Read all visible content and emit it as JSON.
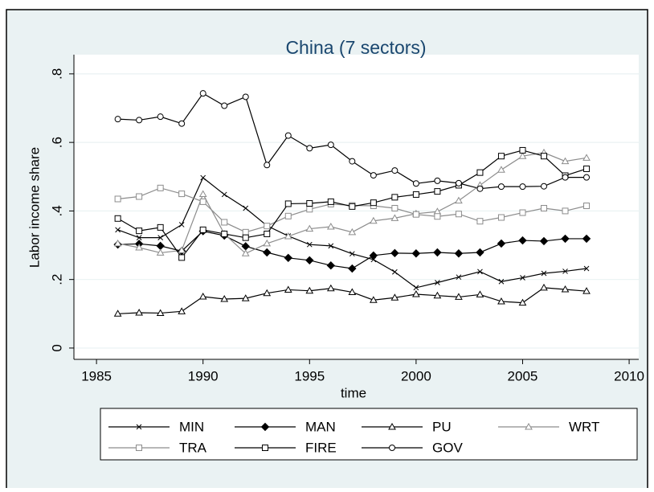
{
  "chart_data": {
    "type": "line",
    "title": "China (7 sectors)",
    "title_color": "#1a476f",
    "x_label": "time",
    "y_label": "Labor income share",
    "x": [
      1986,
      1987,
      1988,
      1989,
      1990,
      1991,
      1992,
      1993,
      1994,
      1995,
      1996,
      1997,
      1998,
      1999,
      2000,
      2001,
      2002,
      2003,
      2004,
      2005,
      2006,
      2007,
      2008
    ],
    "xlim": [
      1983.94,
      2010.45
    ],
    "xticks": [
      1985,
      1990,
      1995,
      2000,
      2005,
      2010
    ],
    "ylim": [
      -0.033,
      0.856
    ],
    "yticks": [
      0,
      {
        "value": 0.2,
        "label": ".2"
      },
      {
        "value": 0.4,
        "label": ".4"
      },
      {
        "value": 0.6,
        "label": ".6"
      },
      {
        "value": 0.8,
        "label": ".8"
      }
    ],
    "grid": true,
    "legend_position": "bottom",
    "series": [
      {
        "name": "MIN",
        "color": "#000000",
        "marker": "x",
        "marker_filled": false,
        "values": [
          0.345,
          0.322,
          0.322,
          0.36,
          0.497,
          0.448,
          0.408,
          0.357,
          0.327,
          0.302,
          0.298,
          0.275,
          0.258,
          0.222,
          0.176,
          0.191,
          0.207,
          0.223,
          0.194,
          0.205,
          0.218,
          0.224,
          0.232
        ]
      },
      {
        "name": "MAN",
        "color": "#000000",
        "marker": "diamond",
        "marker_filled": true,
        "values": [
          0.302,
          0.304,
          0.298,
          0.283,
          0.341,
          0.328,
          0.297,
          0.279,
          0.263,
          0.256,
          0.241,
          0.232,
          0.27,
          0.277,
          0.276,
          0.279,
          0.276,
          0.279,
          0.305,
          0.314,
          0.312,
          0.319,
          0.319
        ]
      },
      {
        "name": "PU",
        "color": "#000000",
        "marker": "triangle",
        "marker_filled": false,
        "values": [
          0.1,
          0.103,
          0.102,
          0.107,
          0.15,
          0.143,
          0.145,
          0.16,
          0.17,
          0.167,
          0.174,
          0.163,
          0.14,
          0.147,
          0.157,
          0.153,
          0.149,
          0.156,
          0.136,
          0.132,
          0.176,
          0.171,
          0.166
        ]
      },
      {
        "name": "WRT",
        "color": "#8c8c8c",
        "marker": "triangle",
        "marker_filled": false,
        "values": [
          0.305,
          0.293,
          0.278,
          0.285,
          0.449,
          0.333,
          0.276,
          0.305,
          0.326,
          0.348,
          0.354,
          0.338,
          0.371,
          0.379,
          0.392,
          0.398,
          0.43,
          0.475,
          0.52,
          0.56,
          0.57,
          0.545,
          0.555
        ]
      },
      {
        "name": "TRA",
        "color": "#8c8c8c",
        "marker": "square",
        "marker_filled": false,
        "values": [
          0.435,
          0.442,
          0.467,
          0.45,
          0.427,
          0.367,
          0.338,
          0.356,
          0.385,
          0.405,
          0.42,
          0.416,
          0.415,
          0.408,
          0.39,
          0.384,
          0.391,
          0.37,
          0.381,
          0.395,
          0.408,
          0.4,
          0.415
        ]
      },
      {
        "name": "FIRE",
        "color": "#000000",
        "marker": "square",
        "marker_filled": false,
        "values": [
          0.378,
          0.342,
          0.352,
          0.264,
          0.345,
          0.333,
          0.322,
          0.333,
          0.421,
          0.422,
          0.427,
          0.413,
          0.424,
          0.44,
          0.448,
          0.457,
          0.475,
          0.512,
          0.56,
          0.577,
          0.56,
          0.503,
          0.523
        ]
      },
      {
        "name": "GOV",
        "color": "#000000",
        "marker": "circle",
        "marker_filled": false,
        "values": [
          0.668,
          0.665,
          0.675,
          0.655,
          0.743,
          0.707,
          0.733,
          0.534,
          0.62,
          0.583,
          0.593,
          0.545,
          0.504,
          0.518,
          0.48,
          0.488,
          0.481,
          0.465,
          0.471,
          0.471,
          0.472,
          0.498,
          0.498
        ]
      }
    ]
  }
}
